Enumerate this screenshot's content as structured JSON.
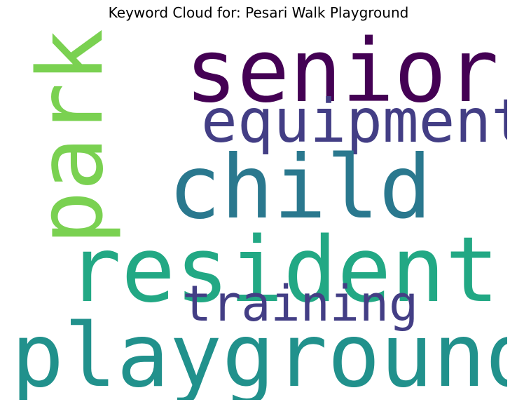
{
  "title": "Keyword Cloud for: Pesari Walk Playground",
  "words": [
    {
      "id": "senior",
      "text": "senior",
      "color": "#440154"
    },
    {
      "id": "equipment",
      "text": "equipment",
      "color": "#433e85"
    },
    {
      "id": "child",
      "text": "child",
      "color": "#2a788e"
    },
    {
      "id": "resident",
      "text": "resident",
      "color": "#22a884"
    },
    {
      "id": "training",
      "text": "training",
      "color": "#433e85"
    },
    {
      "id": "playground",
      "text": "playground",
      "color": "#21918c"
    },
    {
      "id": "park",
      "text": "park",
      "color": "#7ad151"
    }
  ]
}
